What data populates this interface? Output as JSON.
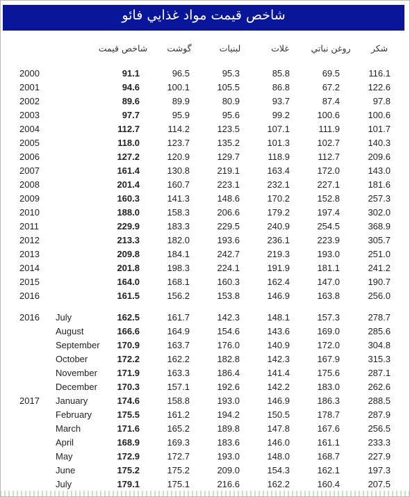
{
  "title": "شاخص قيمت مواد غذايي فائو",
  "headers": [
    "شاخص قيمت",
    "گوشت",
    "لبنيات",
    "غلات",
    "روغن نباتي",
    "شكر"
  ],
  "rows": [
    {
      "year": "2000",
      "month": "",
      "values": [
        "91.1",
        "96.5",
        "95.3",
        "85.8",
        "69.5",
        "116.1"
      ]
    },
    {
      "year": "2001",
      "month": "",
      "values": [
        "94.6",
        "100.1",
        "105.5",
        "86.8",
        "67.2",
        "122.6"
      ]
    },
    {
      "year": "2002",
      "month": "",
      "values": [
        "89.6",
        "89.9",
        "80.9",
        "93.7",
        "87.4",
        "97.8"
      ]
    },
    {
      "year": "2003",
      "month": "",
      "values": [
        "97.7",
        "95.9",
        "95.6",
        "99.2",
        "100.6",
        "100.6"
      ]
    },
    {
      "year": "2004",
      "month": "",
      "values": [
        "112.7",
        "114.2",
        "123.5",
        "107.1",
        "111.9",
        "101.7"
      ]
    },
    {
      "year": "2005",
      "month": "",
      "values": [
        "118.0",
        "123.7",
        "135.2",
        "101.3",
        "102.7",
        "140.3"
      ]
    },
    {
      "year": "2006",
      "month": "",
      "values": [
        "127.2",
        "120.9",
        "129.7",
        "118.9",
        "112.7",
        "209.6"
      ]
    },
    {
      "year": "2007",
      "month": "",
      "values": [
        "161.4",
        "130.8",
        "219.1",
        "163.4",
        "172.0",
        "143.0"
      ]
    },
    {
      "year": "2008",
      "month": "",
      "values": [
        "201.4",
        "160.7",
        "223.1",
        "232.1",
        "227.1",
        "181.6"
      ]
    },
    {
      "year": "2009",
      "month": "",
      "values": [
        "160.3",
        "141.3",
        "148.6",
        "170.2",
        "152.8",
        "257.3"
      ]
    },
    {
      "year": "2010",
      "month": "",
      "values": [
        "188.0",
        "158.3",
        "206.6",
        "179.2",
        "197.4",
        "302.0"
      ]
    },
    {
      "year": "2011",
      "month": "",
      "values": [
        "229.9",
        "183.3",
        "229.5",
        "240.9",
        "254.5",
        "368.9"
      ]
    },
    {
      "year": "2012",
      "month": "",
      "values": [
        "213.3",
        "182.0",
        "193.6",
        "236.1",
        "223.9",
        "305.7"
      ]
    },
    {
      "year": "2013",
      "month": "",
      "values": [
        "209.8",
        "184.1",
        "242.7",
        "219.3",
        "193.0",
        "251.0"
      ]
    },
    {
      "year": "2014",
      "month": "",
      "values": [
        "201.8",
        "198.3",
        "224.1",
        "191.9",
        "181.1",
        "241.2"
      ]
    },
    {
      "year": "2015",
      "month": "",
      "values": [
        "164.0",
        "168.1",
        "160.3",
        "162.4",
        "147.0",
        "190.7"
      ]
    },
    {
      "year": "2016",
      "month": "",
      "values": [
        "161.5",
        "156.2",
        "153.8",
        "146.9",
        "163.8",
        "256.0"
      ]
    },
    {
      "year": "2016",
      "month": "July",
      "values": [
        "162.5",
        "161.7",
        "142.3",
        "148.1",
        "157.3",
        "278.7"
      ]
    },
    {
      "year": "",
      "month": "August",
      "values": [
        "166.6",
        "164.9",
        "154.6",
        "143.6",
        "169.0",
        "285.6"
      ]
    },
    {
      "year": "",
      "month": "September",
      "values": [
        "170.9",
        "163.7",
        "176.0",
        "140.9",
        "172.0",
        "304.8"
      ]
    },
    {
      "year": "",
      "month": "October",
      "values": [
        "172.2",
        "162.2",
        "182.8",
        "142.3",
        "167.9",
        "315.3"
      ]
    },
    {
      "year": "",
      "month": "November",
      "values": [
        "171.9",
        "163.3",
        "186.4",
        "141.4",
        "175.6",
        "287.1"
      ]
    },
    {
      "year": "",
      "month": "December",
      "values": [
        "170.3",
        "157.1",
        "192.6",
        "142.2",
        "183.0",
        "262.6"
      ]
    },
    {
      "year": "2017",
      "month": "January",
      "values": [
        "174.6",
        "158.8",
        "193.0",
        "146.9",
        "186.3",
        "288.5"
      ]
    },
    {
      "year": "",
      "month": "February",
      "values": [
        "175.5",
        "161.2",
        "194.2",
        "150.5",
        "178.7",
        "287.9"
      ]
    },
    {
      "year": "",
      "month": "March",
      "values": [
        "171.6",
        "165.2",
        "189.8",
        "147.8",
        "167.6",
        "256.5"
      ]
    },
    {
      "year": "",
      "month": "April",
      "values": [
        "168.9",
        "169.3",
        "183.6",
        "146.0",
        "161.1",
        "233.3"
      ]
    },
    {
      "year": "",
      "month": "May",
      "values": [
        "172.9",
        "172.7",
        "193.0",
        "148.0",
        "168.7",
        "227.9"
      ]
    },
    {
      "year": "",
      "month": "June",
      "values": [
        "175.2",
        "175.2",
        "209.0",
        "154.3",
        "162.1",
        "197.3"
      ]
    },
    {
      "year": "",
      "month": "July",
      "values": [
        "179.1",
        "175.1",
        "216.6",
        "162.2",
        "160.4",
        "207.5"
      ]
    }
  ]
}
